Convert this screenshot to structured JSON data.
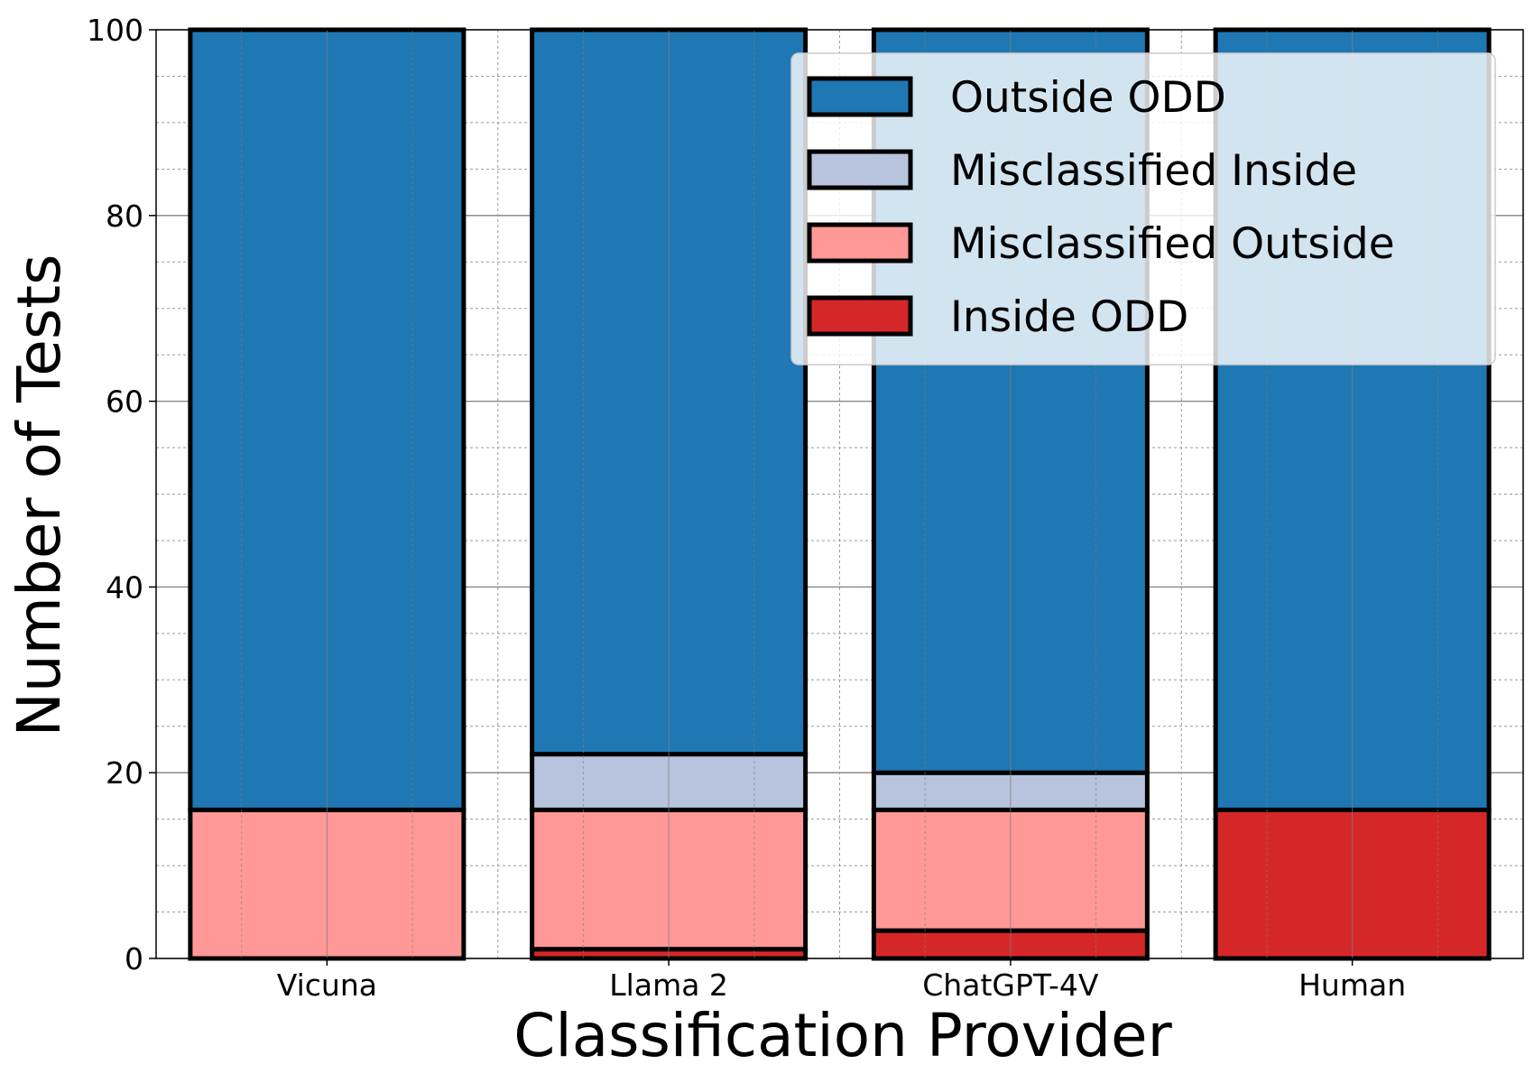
{
  "chart_data": {
    "type": "bar",
    "stacked": true,
    "title": "",
    "xlabel": "Classification Provider",
    "ylabel": "Number of Tests",
    "ylim": [
      0,
      100
    ],
    "yticks": [
      0,
      20,
      40,
      60,
      80,
      100
    ],
    "grid": true,
    "legend_position": "top-right",
    "categories": [
      "Vicuna",
      "Llama 2",
      "ChatGPT-4V",
      "Human"
    ],
    "series": [
      {
        "name": "Inside ODD",
        "color": "#d62728",
        "values": [
          0,
          1,
          3,
          16
        ]
      },
      {
        "name": "Misclassified Outside",
        "color": "#ff9896",
        "values": [
          16,
          15,
          13,
          0
        ]
      },
      {
        "name": "Misclassified Inside",
        "color": "#b8c4dd",
        "values": [
          0,
          6,
          4,
          0
        ]
      },
      {
        "name": "Outside ODD",
        "color": "#1f77b4",
        "values": [
          84,
          78,
          80,
          84
        ]
      }
    ],
    "legend_order": [
      "Outside ODD",
      "Misclassified Inside",
      "Misclassified Outside",
      "Inside ODD"
    ]
  }
}
